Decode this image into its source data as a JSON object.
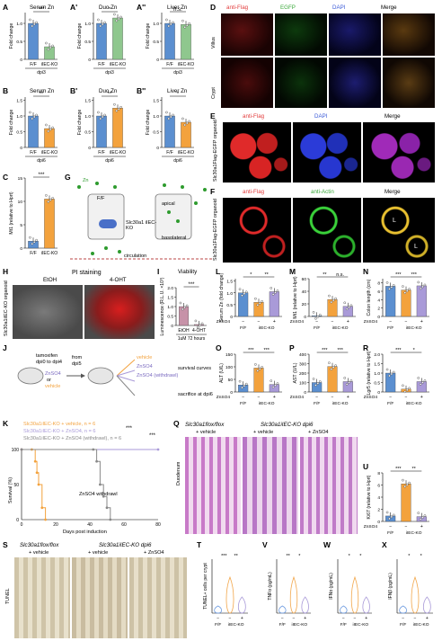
{
  "panel_letters": [
    "A",
    "A'",
    "A''",
    "B",
    "B'",
    "B''",
    "C",
    "D",
    "E",
    "F",
    "G",
    "H",
    "I",
    "J",
    "K",
    "L",
    "M",
    "N",
    "O",
    "P",
    "Q",
    "R",
    "S",
    "T",
    "U",
    "V",
    "W",
    "X"
  ],
  "A": {
    "title": "Serum Zn",
    "ylabel": "Fold change",
    "sig": "***",
    "groups": [
      "F/F",
      "iIEC-KO"
    ],
    "sub": "dpi3",
    "ticks": [
      "0",
      "0.5",
      "1.0"
    ]
  },
  "A1": {
    "title": "Duo Zn",
    "ylabel": "Fold change",
    "sig": "*",
    "groups": [
      "F/F",
      "iIEC-KO"
    ],
    "sub": "dpi3",
    "ticks": [
      "0",
      "0.5",
      "1.0"
    ]
  },
  "A2": {
    "title": "Liver Zn",
    "ylabel": "Fold change",
    "sig": "n.s.",
    "groups": [
      "F/F",
      "iIEC-KO"
    ],
    "sub": "dpi3",
    "ticks": [
      "0",
      "0.5",
      "1.0"
    ]
  },
  "B": {
    "title": "Serum Zn",
    "ylabel": "Fold change",
    "sig": "**",
    "groups": [
      "F/F",
      "iIEC-KO"
    ],
    "sub": "dpi6",
    "ticks": [
      "0",
      "0.5",
      "1.0",
      "1.5"
    ]
  },
  "B1": {
    "title": "Duo Zn",
    "ylabel": "Fold change",
    "sig": "**",
    "groups": [
      "F/F",
      "iIEC-KO"
    ],
    "sub": "dpi6",
    "ticks": [
      "0",
      "0.5",
      "1.0",
      "1.5"
    ]
  },
  "B2": {
    "title": "Liver Zn",
    "ylabel": "Fold change",
    "sig": "*",
    "groups": [
      "F/F",
      "iIEC-KO"
    ],
    "sub": "dpi6",
    "ticks": [
      "0",
      "0.5",
      "1.0",
      "1.5"
    ]
  },
  "C": {
    "ylabel": "Mt1 (relative to Hprt)",
    "sig": "***",
    "groups": [
      "F/F",
      "iIEC-KO"
    ],
    "ticks": [
      "0",
      "5",
      "10",
      "15"
    ]
  },
  "D": {
    "stains": [
      "anti-Flag",
      "EGFP",
      "DAPI",
      "Merge"
    ],
    "rows": [
      "Villus",
      "Crypt"
    ]
  },
  "E": {
    "stains": [
      "anti-Flag",
      "DAPI",
      "Merge"
    ],
    "side": "Slc30a1Flag-EGFP organoid"
  },
  "F": {
    "stains": [
      "anti-Flag",
      "anti-Actin",
      "Merge"
    ],
    "side": "Slc30a1Flag-EGFP organoid",
    "lumen": "L"
  },
  "G": {
    "labels": [
      "Zn",
      "F/F",
      "Slc30a1 iIEC-KO",
      "apical",
      "basolateral",
      "circulation",
      "Slc30a1",
      "MT"
    ]
  },
  "H": {
    "title": "PI staining",
    "cols": [
      "EtOH",
      "4-OHT"
    ],
    "side": "Slc30a1iIEC-KO organoid"
  },
  "I": {
    "title": "Viability",
    "ylabel": "Luminescence (R.L.U. ×10³)",
    "sig": "***",
    "groups": [
      "EtOH",
      "4-OHT"
    ],
    "sub": "1uM 72 hours",
    "ticks": [
      "0",
      "0.5",
      "1.0",
      "1.5",
      "2.0"
    ]
  },
  "L": {
    "ylabel": "Serum Zn (fold change)",
    "sigs": [
      "*",
      "**"
    ],
    "ticks": [
      "0",
      "0.5",
      "1.0",
      "1.5"
    ]
  },
  "M": {
    "ylabel": "Mt1 (relative to Hprt)",
    "sigs": [
      "**",
      "n.s."
    ],
    "ticks": [
      "0",
      "20",
      "40",
      "60"
    ]
  },
  "N": {
    "ylabel": "Colon length (cm)",
    "sigs": [
      "***",
      "***"
    ],
    "ticks": [
      "0",
      "2",
      "4",
      "6",
      "8"
    ]
  },
  "O": {
    "ylabel": "ALT (U/L)",
    "sigs": [
      "***",
      "***"
    ],
    "ticks": [
      "0",
      "50",
      "100",
      "150"
    ]
  },
  "P": {
    "ylabel": "AST (U/L)",
    "sigs": [
      "***",
      "***"
    ],
    "ticks": [
      "0",
      "100",
      "200",
      "300",
      "400"
    ]
  },
  "R": {
    "ylabel": "Lgr5 (relative to Hprt)",
    "sigs": [
      "***",
      "*"
    ],
    "ticks": [
      "0",
      "0.5",
      "1.0",
      "1.5",
      "2.0"
    ]
  },
  "U": {
    "ylabel": "Ki67 (relative to Hprt)",
    "sigs": [
      "***",
      "**"
    ],
    "ticks": [
      "0",
      "2",
      "4",
      "6",
      "8"
    ]
  },
  "groups3": {
    "zn_row": [
      "ZnSO4",
      "−",
      "−",
      "+"
    ],
    "geno": [
      "F/F",
      "iIEC-KO"
    ]
  },
  "J": {
    "lines": [
      "tamoxifen",
      "dpi0 to dpi4",
      "from",
      "dpi5"
    ],
    "zn": "ZnSO4",
    "or": "or",
    "vehicle": "vehicle",
    "arms": [
      "vehicle",
      "ZnSO4",
      "ZnSO4 (withdrawl)"
    ],
    "outcomes": [
      "survival curves",
      "sacrifice at dpi6"
    ]
  },
  "K": {
    "ylabel": "Survival (%)",
    "xlabel": "Days post induction",
    "legend": [
      "Slc30a1iIEC-KO + vehicle, n = 6",
      "Slc30a1iIEC-KO + ZnSO4, n = 6",
      "Slc30a1iIEC-KO + ZnSO4 (withdrawl), n = 6"
    ],
    "annot": "ZnSO4 withdrawl",
    "sigs": [
      "***",
      "***"
    ],
    "xticks": [
      "0",
      "20",
      "40",
      "60",
      "80"
    ],
    "yticks": [
      "0",
      "50",
      "100"
    ]
  },
  "Q": {
    "cols": [
      "Slc30a1flox/flox",
      "Slc30a1iIEC-KO dpi6"
    ],
    "sub": [
      "+ vehicle",
      "+ vehicle",
      "+ ZnSO4"
    ],
    "side": "Duodenum"
  },
  "S": {
    "cols": [
      "Slc30a1flox/flox",
      "Slc30a1iIEC-KO dpi6"
    ],
    "sub": [
      "+ vehicle",
      "+ vehicle",
      "+ ZnSO4"
    ],
    "side": "TUNEL"
  },
  "T": {
    "ylabel": "TUNEL+ cells per crypt",
    "sigs": [
      "***",
      "**"
    ]
  },
  "V": {
    "ylabel": "TNFα (pg/mL)",
    "sigs": [
      "**",
      "*"
    ]
  },
  "W": {
    "ylabel": "IFNα (pg/mL)",
    "sigs": [
      "*",
      "*"
    ]
  },
  "X": {
    "ylabel": "IFNβ (pg/mL)",
    "sigs": [
      "*",
      "*"
    ]
  },
  "colors": {
    "blue": "#5b8fd0",
    "green": "#8fc78e",
    "orange": "#f3a23d",
    "purple": "#a99ad8",
    "violin_orange": "#f2a64a",
    "violin_blue": "#6d9be0"
  },
  "chart_data": [
    {
      "type": "bar",
      "panel": "A",
      "categories": [
        "F/F",
        "iIEC-KO"
      ],
      "values": [
        1.0,
        0.35
      ],
      "ylim": [
        0,
        1.3
      ]
    },
    {
      "type": "bar",
      "panel": "A'",
      "categories": [
        "F/F",
        "iIEC-KO"
      ],
      "values": [
        1.0,
        1.15
      ],
      "ylim": [
        0,
        1.3
      ]
    },
    {
      "type": "bar",
      "panel": "A''",
      "categories": [
        "F/F",
        "iIEC-KO"
      ],
      "values": [
        1.0,
        0.97
      ],
      "ylim": [
        0,
        1.3
      ]
    },
    {
      "type": "bar",
      "panel": "B",
      "categories": [
        "F/F",
        "iIEC-KO"
      ],
      "values": [
        1.0,
        0.6
      ],
      "ylim": [
        0,
        1.6
      ]
    },
    {
      "type": "bar",
      "panel": "B'",
      "categories": [
        "F/F",
        "iIEC-KO"
      ],
      "values": [
        1.0,
        1.25
      ],
      "ylim": [
        0,
        1.6
      ]
    },
    {
      "type": "bar",
      "panel": "B''",
      "categories": [
        "F/F",
        "iIEC-KO"
      ],
      "values": [
        1.0,
        0.8
      ],
      "ylim": [
        0,
        1.6
      ]
    },
    {
      "type": "bar",
      "panel": "C",
      "categories": [
        "F/F",
        "iIEC-KO"
      ],
      "values": [
        1.5,
        10.5
      ],
      "ylim": [
        0,
        15
      ]
    },
    {
      "type": "bar",
      "panel": "I",
      "categories": [
        "EtOH",
        "4-OHT"
      ],
      "values": [
        1.0,
        0.05
      ],
      "ylim": [
        0,
        2.0
      ]
    },
    {
      "type": "bar",
      "panel": "L",
      "categories": [
        "F/F",
        "iIEC-KO",
        "iIEC-KO + ZnSO4"
      ],
      "values": [
        1.0,
        0.6,
        1.05
      ],
      "ylim": [
        0,
        1.6
      ]
    },
    {
      "type": "bar",
      "panel": "M",
      "categories": [
        "F/F",
        "iIEC-KO",
        "iIEC-KO + ZnSO4"
      ],
      "values": [
        1,
        27,
        16
      ],
      "ylim": [
        0,
        60
      ]
    },
    {
      "type": "bar",
      "panel": "N",
      "categories": [
        "F/F",
        "iIEC-KO",
        "iIEC-KO + ZnSO4"
      ],
      "values": [
        7.2,
        6.3,
        7.3
      ],
      "ylim": [
        0,
        9
      ]
    },
    {
      "type": "bar",
      "panel": "O",
      "categories": [
        "F/F",
        "iIEC-KO",
        "iIEC-KO + ZnSO4"
      ],
      "values": [
        28,
        95,
        30
      ],
      "ylim": [
        0,
        150
      ]
    },
    {
      "type": "bar",
      "panel": "P",
      "categories": [
        "F/F",
        "iIEC-KO",
        "iIEC-KO + ZnSO4"
      ],
      "values": [
        100,
        270,
        110
      ],
      "ylim": [
        0,
        400
      ]
    },
    {
      "type": "bar",
      "panel": "R",
      "categories": [
        "F/F",
        "iIEC-KO",
        "iIEC-KO + ZnSO4"
      ],
      "values": [
        1.0,
        0.15,
        0.55
      ],
      "ylim": [
        0,
        2.0
      ]
    },
    {
      "type": "bar",
      "panel": "U",
      "categories": [
        "F/F",
        "iIEC-KO",
        "iIEC-KO + ZnSO4"
      ],
      "values": [
        0.9,
        6.2,
        0.8
      ],
      "ylim": [
        0,
        8
      ]
    },
    {
      "type": "line",
      "panel": "K",
      "series": [
        {
          "name": "Slc30a1iIEC-KO + vehicle, n = 6",
          "x": [
            0,
            6,
            8,
            9,
            10,
            12,
            14
          ],
          "y": [
            100,
            100,
            83,
            67,
            50,
            17,
            0
          ]
        },
        {
          "name": "Slc30a1iIEC-KO + ZnSO4, n = 6",
          "x": [
            0,
            80
          ],
          "y": [
            100,
            100
          ]
        },
        {
          "name": "Slc30a1iIEC-KO + ZnSO4 (withdrawl), n = 6",
          "x": [
            0,
            42,
            44,
            46,
            48,
            50,
            52
          ],
          "y": [
            100,
            100,
            83,
            50,
            33,
            17,
            0
          ]
        }
      ],
      "xlim": [
        0,
        80
      ],
      "ylim": [
        0,
        100
      ]
    }
  ]
}
